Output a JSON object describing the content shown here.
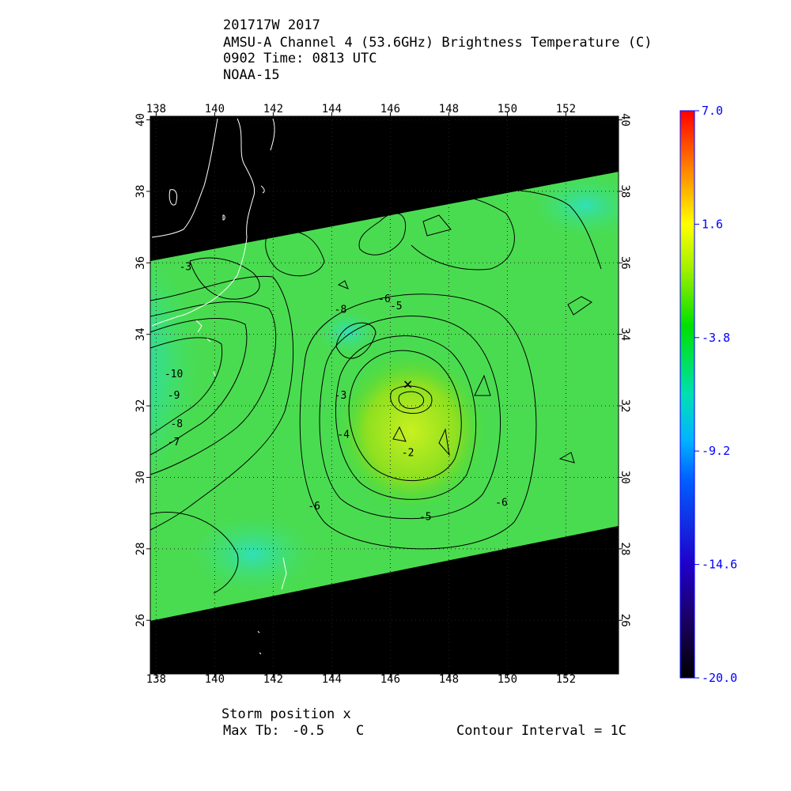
{
  "header": {
    "line1": "201717W 2017",
    "line2": "AMSU-A Channel 4 (53.6GHz) Brightness Temperature (C)",
    "line3": "0902 Time: 0813 UTC",
    "line4": "NOAA-15"
  },
  "footer": {
    "storm_position": "Storm position x",
    "max_tb_label": "Max Tb:",
    "max_tb_value": "-0.5",
    "max_tb_unit": "C",
    "contour_interval": "Contour Interval = 1C"
  },
  "colors": {
    "swath_gap": "#000000",
    "coast": "#ffffff",
    "contour": "#000000",
    "grid": "#202020",
    "colorbar_label": "#0000ff"
  },
  "chart_data": {
    "type": "heatmap",
    "title": "AMSU-A Channel 4 (53.6GHz) Brightness Temperature (C)",
    "xlabel": "",
    "ylabel": "",
    "xlim": [
      137.8,
      153.8
    ],
    "ylim": [
      24.5,
      40.1
    ],
    "x_ticks": [
      "138",
      "140",
      "142",
      "144",
      "146",
      "148",
      "150",
      "152"
    ],
    "y_ticks": [
      "26",
      "28",
      "30",
      "32",
      "34",
      "36",
      "38",
      "40"
    ],
    "grid": true,
    "colorbar": {
      "min": -20.0,
      "max": 7.0,
      "tick_labels": [
        "7.0",
        "1.6",
        "-3.8",
        "-9.2",
        "-14.6",
        "-20.0"
      ],
      "tick_values": [
        7.0,
        1.6,
        -3.8,
        -9.2,
        -14.6,
        -20.0
      ]
    },
    "contour_labels": [
      {
        "text": "-3",
        "lon": 139.0,
        "lat": 35.8
      },
      {
        "text": "-10",
        "lon": 138.6,
        "lat": 32.8
      },
      {
        "text": "-9",
        "lon": 138.6,
        "lat": 32.2
      },
      {
        "text": "-8",
        "lon": 138.7,
        "lat": 31.4
      },
      {
        "text": "-7",
        "lon": 138.6,
        "lat": 30.9
      },
      {
        "text": "-8",
        "lon": 144.3,
        "lat": 34.6
      },
      {
        "text": "-6",
        "lon": 145.8,
        "lat": 34.9
      },
      {
        "text": "-5",
        "lon": 146.2,
        "lat": 34.7
      },
      {
        "text": "-3",
        "lon": 144.3,
        "lat": 32.2
      },
      {
        "text": "-4",
        "lon": 144.4,
        "lat": 31.1
      },
      {
        "text": "-2",
        "lon": 146.6,
        "lat": 30.6
      },
      {
        "text": "-6",
        "lon": 143.4,
        "lat": 29.1
      },
      {
        "text": "-5",
        "lon": 147.2,
        "lat": 28.8
      },
      {
        "text": "-6",
        "lon": 149.8,
        "lat": 29.2
      }
    ],
    "storm_center": {
      "lon": 146.6,
      "lat": 32.6,
      "max_tb": -0.5
    }
  }
}
